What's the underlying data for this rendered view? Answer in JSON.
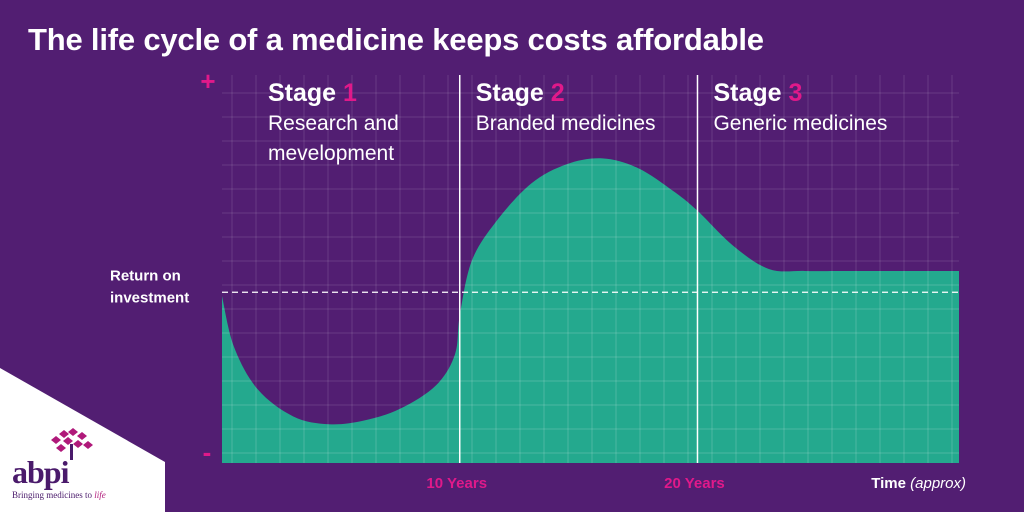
{
  "title": "The life cycle of a medicine keeps costs affordable",
  "colors": {
    "background": "#521e72",
    "area": "#24a98e",
    "accent": "#e0198a",
    "white": "#ffffff",
    "logo": "#4a1a6b"
  },
  "chart_data": {
    "type": "area",
    "x_unit": "years",
    "xlim": [
      0,
      31
    ],
    "ylim": [
      0,
      100
    ],
    "x": [
      0,
      0.5,
      1.5,
      3,
      4.5,
      6,
      7.5,
      9,
      9.8,
      10,
      10.5,
      11.5,
      13,
      14.5,
      16,
      17.5,
      19,
      20,
      21.5,
      23,
      24.5,
      26,
      28,
      31
    ],
    "y": [
      43,
      30,
      19,
      12,
      10,
      11,
      14,
      20,
      28,
      38,
      52,
      62,
      72,
      77,
      78.5,
      76,
      70,
      65,
      56,
      50,
      49.5,
      49.5,
      49.5,
      49.5
    ],
    "reference_line": {
      "y": 44,
      "label": "Return on investment",
      "style": "dashed"
    },
    "stage_dividers": [
      10,
      20
    ],
    "x_tick_labels": [
      {
        "x": 10,
        "label": "10 Years"
      },
      {
        "x": 20,
        "label": "20 Years"
      }
    ],
    "xlabel": {
      "main": "Time",
      "suffix": "(approx)"
    },
    "y_top_label": "+",
    "y_bottom_label": "-",
    "grid": true,
    "stages": [
      {
        "word": "Stage",
        "number": "1",
        "desc_lines": [
          "Research and",
          "mevelopment"
        ]
      },
      {
        "word": "Stage",
        "number": "2",
        "desc_lines": [
          "Branded medicines"
        ]
      },
      {
        "word": "Stage",
        "number": "3",
        "desc_lines": [
          "Generic medicines"
        ]
      }
    ]
  },
  "logo": {
    "text": "abpi",
    "tagline_prefix": "Bringing medicines to ",
    "tagline_emphasis": "life"
  }
}
